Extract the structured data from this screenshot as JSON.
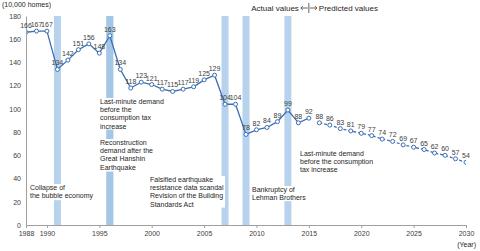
{
  "chart_data": {
    "type": "line",
    "y_label": "(10,000 homes)",
    "x_label": "(Year)",
    "x": [
      1988,
      1989,
      1990,
      1991,
      1992,
      1993,
      1994,
      1995,
      1996,
      1997,
      1998,
      1999,
      2000,
      2001,
      2002,
      2003,
      2004,
      2005,
      2006,
      2007,
      2008,
      2009,
      2010,
      2011,
      2012,
      2013,
      2014,
      2015,
      2016,
      2017,
      2018,
      2019,
      2020,
      2021,
      2022,
      2023,
      2024,
      2025,
      2026,
      2027,
      2028,
      2029,
      2030
    ],
    "series": [
      {
        "name": "Actual values",
        "color": "#3c6eb4",
        "line_style": "solid",
        "marker": "circle",
        "values": [
          166,
          167,
          167,
          134,
          142,
          151,
          156,
          148,
          163,
          134,
          118,
          123,
          121,
          117,
          115,
          117,
          119,
          125,
          129,
          104,
          104,
          78,
          82,
          84,
          89,
          99,
          88,
          92,
          null,
          null,
          null,
          null,
          null,
          null,
          null,
          null,
          null,
          null,
          null,
          null,
          null,
          null,
          null
        ]
      },
      {
        "name": "Predicted values",
        "color": "#3c6eb4",
        "line_style": "dashed",
        "marker": "circle",
        "values": [
          null,
          null,
          null,
          null,
          null,
          null,
          null,
          null,
          null,
          null,
          null,
          null,
          null,
          null,
          null,
          null,
          null,
          null,
          null,
          null,
          null,
          null,
          null,
          null,
          null,
          null,
          null,
          null,
          88,
          86,
          83,
          81,
          79,
          77,
          74,
          72,
          69,
          67,
          65,
          62,
          60,
          57,
          54
        ]
      }
    ],
    "xlim": [
      1988,
      2030
    ],
    "xticks": [
      1988,
      1990,
      1995,
      2000,
      2005,
      2010,
      2015,
      2020,
      2025,
      2030
    ],
    "ylim": [
      0,
      180
    ],
    "yticks": [
      0,
      20,
      40,
      60,
      80,
      100,
      120,
      140,
      160,
      180
    ],
    "grid": false,
    "data_labels": true,
    "annotations": [
      {
        "x": 1991,
        "lines": [
          "Collapse of",
          "the bubble economy"
        ]
      },
      {
        "x": 1996,
        "lines": [
          "Last-minute demand",
          "before the",
          "consumption tax",
          "increase"
        ]
      },
      {
        "x": 1996,
        "lines": [
          "Reconstruction",
          "demand after the",
          "Great Hanshin",
          "Earthquake"
        ]
      },
      {
        "x": 2007,
        "lines": [
          "Falsified earthquake",
          "resistance data scandal",
          "Revision of the Building",
          "Standards Act"
        ]
      },
      {
        "x": 2009,
        "lines": [
          "Bankruptcy of",
          "Lehman Brothers"
        ]
      },
      {
        "x": 2013,
        "lines": [
          "Last-minute demand",
          "before the consumption",
          "tax increase"
        ]
      }
    ]
  }
}
